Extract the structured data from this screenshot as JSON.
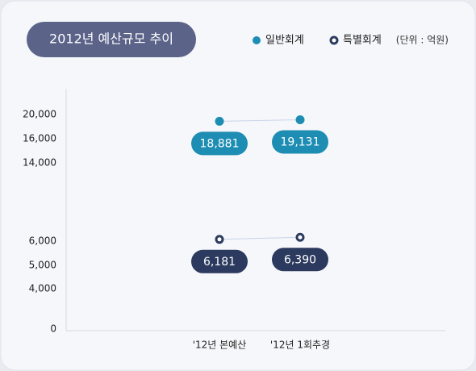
{
  "chart_data": {
    "type": "line",
    "title": "2012년 예산규모 추이",
    "unit": "(단위 : 억원)",
    "categories": [
      "'12년 본예산",
      "'12년 1회추경"
    ],
    "series": [
      {
        "name": "일반회계",
        "color": "#1d8db3",
        "values": [
          18881,
          19131
        ],
        "value_labels": [
          "18,881",
          "19,131"
        ]
      },
      {
        "name": "특별회계",
        "color": "#2b3a5e",
        "values": [
          6181,
          6390
        ],
        "value_labels": [
          "6,181",
          "6,390"
        ]
      }
    ],
    "ylim": [
      0,
      20000
    ],
    "yticks": [
      0,
      {
        "value": 4000,
        "label": "4,000"
      },
      {
        "value": 5000,
        "label": "5,000"
      },
      {
        "value": 6000,
        "label": "6,000"
      },
      {
        "value": 14000,
        "label": "14,000"
      },
      {
        "value": 16000,
        "label": "16,000"
      },
      {
        "value": 20000,
        "label": "20,000"
      }
    ]
  }
}
